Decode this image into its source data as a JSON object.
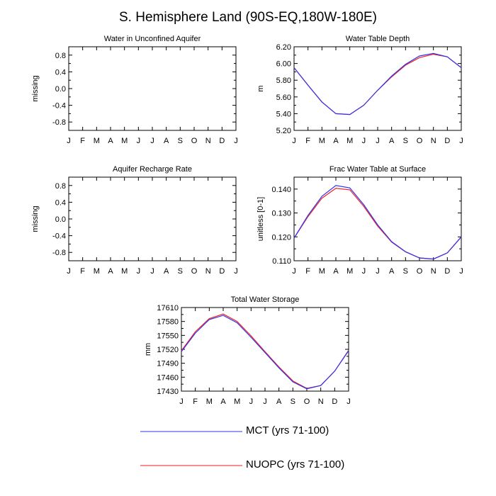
{
  "figure_title": "S. Hemisphere Land (90S-EQ,180W-180E)",
  "legend": {
    "items": [
      {
        "name": "MCT (yrs 71-100)",
        "color": "#3333ee"
      },
      {
        "name": "NUOPC (yrs 71-100)",
        "color": "#ee2222"
      }
    ]
  },
  "chart_data": [
    {
      "type": "line",
      "title": "Water in Unconfined Aquifer",
      "ylabel": "missing",
      "categories": [
        "J",
        "F",
        "M",
        "A",
        "M",
        "J",
        "J",
        "A",
        "S",
        "O",
        "N",
        "D",
        "J"
      ],
      "ylim": [
        -1.0,
        1.0
      ],
      "yticks": [
        -0.8,
        -0.4,
        0.0,
        0.4,
        0.8
      ],
      "ytick_labels": [
        "-0.8",
        "-0.4",
        "0.0",
        "0.4",
        "0.8"
      ],
      "series": []
    },
    {
      "type": "line",
      "title": "Water Table Depth",
      "ylabel": "m",
      "categories": [
        "J",
        "F",
        "M",
        "A",
        "M",
        "J",
        "J",
        "A",
        "S",
        "O",
        "N",
        "D",
        "J"
      ],
      "ylim": [
        5.2,
        6.2
      ],
      "yticks": [
        5.2,
        5.4,
        5.6,
        5.8,
        6.0,
        6.2
      ],
      "ytick_labels": [
        "5.20",
        "5.40",
        "5.60",
        "5.80",
        "6.00",
        "6.20"
      ],
      "series": [
        {
          "name": "MCT (yrs 71-100)",
          "color": "#3333ee",
          "values": [
            5.95,
            5.74,
            5.54,
            5.4,
            5.39,
            5.5,
            5.68,
            5.85,
            5.99,
            6.09,
            6.12,
            6.08,
            5.95
          ]
        },
        {
          "name": "NUOPC (yrs 71-100)",
          "color": "#ee2222",
          "values": [
            5.95,
            5.74,
            5.54,
            5.4,
            5.39,
            5.5,
            5.68,
            5.84,
            5.98,
            6.07,
            6.11,
            6.08,
            5.95
          ]
        }
      ]
    },
    {
      "type": "line",
      "title": "Aquifer Recharge Rate",
      "ylabel": "missing",
      "categories": [
        "J",
        "F",
        "M",
        "A",
        "M",
        "J",
        "J",
        "A",
        "S",
        "O",
        "N",
        "D",
        "J"
      ],
      "ylim": [
        -1.0,
        1.0
      ],
      "yticks": [
        -0.8,
        -0.4,
        0.0,
        0.4,
        0.8
      ],
      "ytick_labels": [
        "-0.8",
        "-0.4",
        "0.0",
        "0.4",
        "0.8"
      ],
      "series": []
    },
    {
      "type": "line",
      "title": "Frac Water Table at Surface",
      "ylabel": "unitless [0-1]",
      "categories": [
        "J",
        "F",
        "M",
        "A",
        "M",
        "J",
        "J",
        "A",
        "S",
        "O",
        "N",
        "D",
        "J"
      ],
      "ylim": [
        0.11,
        0.145
      ],
      "yticks": [
        0.11,
        0.12,
        0.13,
        0.14
      ],
      "ytick_labels": [
        "0.110",
        "0.120",
        "0.130",
        "0.140"
      ],
      "series": [
        {
          "name": "MCT (yrs 71-100)",
          "color": "#3333ee",
          "values": [
            0.1195,
            0.129,
            0.137,
            0.1415,
            0.1405,
            0.1335,
            0.125,
            0.118,
            0.1138,
            0.1112,
            0.1107,
            0.1133,
            0.12
          ]
        },
        {
          "name": "NUOPC (yrs 71-100)",
          "color": "#ee2222",
          "values": [
            0.1195,
            0.1285,
            0.1362,
            0.1403,
            0.1397,
            0.1328,
            0.1245,
            0.1178,
            0.1137,
            0.1112,
            0.1107,
            0.1133,
            0.12
          ]
        }
      ]
    },
    {
      "type": "line",
      "title": "Total Water Storage",
      "ylabel": "mm",
      "categories": [
        "J",
        "F",
        "M",
        "A",
        "M",
        "J",
        "J",
        "A",
        "S",
        "O",
        "N",
        "D",
        "J"
      ],
      "ylim": [
        17430,
        17610
      ],
      "yticks": [
        17430,
        17460,
        17490,
        17520,
        17550,
        17580,
        17610
      ],
      "ytick_labels": [
        "17430",
        "17460",
        "17490",
        "17520",
        "17550",
        "17580",
        "17610"
      ],
      "series": [
        {
          "name": "MCT (yrs 71-100)",
          "color": "#3333ee",
          "values": [
            17515,
            17555,
            17584,
            17593,
            17577,
            17546,
            17513,
            17480,
            17450,
            17435,
            17442,
            17473,
            17517
          ]
        },
        {
          "name": "NUOPC (yrs 71-100)",
          "color": "#ee2222",
          "values": [
            17517,
            17558,
            17586,
            17596,
            17580,
            17549,
            17515,
            17482,
            17452,
            17436,
            17442,
            17473,
            17518
          ]
        }
      ]
    }
  ]
}
